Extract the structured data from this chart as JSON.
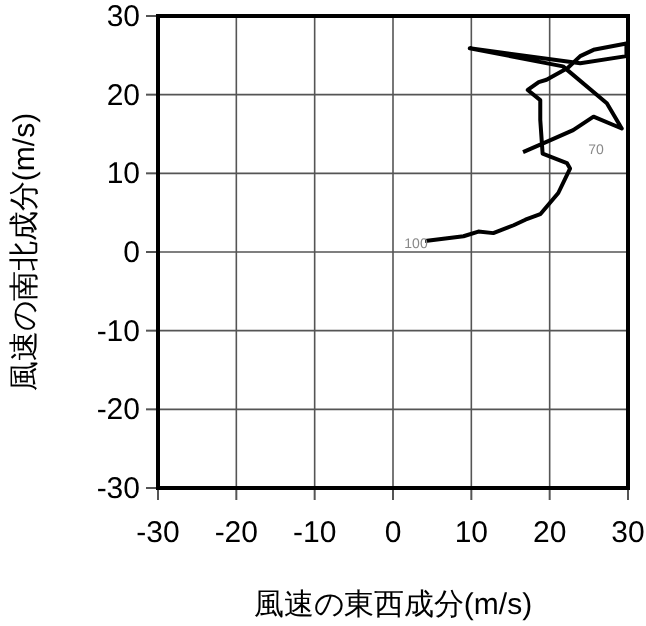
{
  "chart_data": {
    "type": "line",
    "xlabel": "風速の東西成分(m/s)",
    "ylabel": "風速の南北成分(m/s)",
    "xlim": [
      -30,
      30
    ],
    "ylim": [
      -30,
      30
    ],
    "xticks": [
      -30,
      -20,
      -10,
      0,
      10,
      20,
      30
    ],
    "yticks": [
      -30,
      -20,
      -10,
      0,
      10,
      20,
      30
    ],
    "grid": true,
    "series": [
      {
        "color": "#000000",
        "x": [
          4.1,
          9.0,
          10.9,
          12.8,
          15.4,
          16.9,
          18.8,
          21.1,
          22.6,
          22.2,
          19.1,
          18.8,
          18.8,
          17.2,
          18.6,
          19.6,
          22.3,
          23.9,
          25.6,
          29.8,
          29.8,
          23.9,
          9.8,
          21.7,
          27.3,
          29.2,
          25.6,
          23.0,
          19.6,
          16.6
        ],
        "values": [
          1.4,
          2.0,
          2.6,
          2.4,
          3.4,
          4.1,
          4.8,
          7.5,
          10.6,
          11.3,
          12.5,
          16.8,
          19.3,
          20.6,
          21.6,
          21.9,
          23.4,
          24.9,
          25.7,
          26.5,
          24.9,
          24.0,
          25.9,
          23.6,
          18.9,
          15.7,
          17.2,
          15.5,
          14.0,
          12.7
        ]
      }
    ],
    "annotations": [
      "100",
      "70"
    ]
  }
}
